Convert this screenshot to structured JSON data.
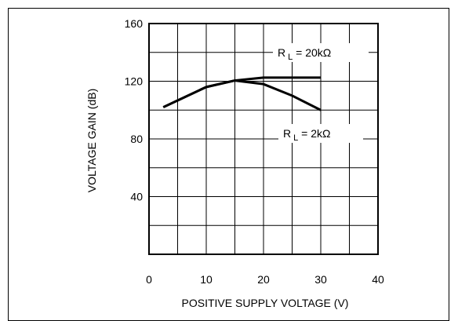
{
  "chart_data": {
    "type": "line",
    "xlabel": "POSITIVE SUPPLY VOLTAGE (V)",
    "ylabel": "VOLTAGE GAIN (dB)",
    "xlim": [
      0,
      40
    ],
    "ylim": [
      0,
      160
    ],
    "x_ticks": [
      0,
      10,
      20,
      30,
      40
    ],
    "y_ticks": [
      40,
      80,
      120,
      160
    ],
    "x_tick_labels": [
      "0",
      "10",
      "20",
      "30",
      "40"
    ],
    "y_tick_labels": [
      "40",
      "80",
      "120",
      "160"
    ],
    "grid": true,
    "series": [
      {
        "name": "RL = 20kΩ",
        "x": [
          2.5,
          10,
          15,
          20,
          30
        ],
        "y": [
          102,
          116,
          120.5,
          122.5,
          122.5
        ]
      },
      {
        "name": "RL = 2kΩ",
        "x": [
          2.5,
          10,
          15,
          20,
          25,
          30
        ],
        "y": [
          102,
          116,
          120.5,
          118,
          110,
          100
        ]
      }
    ],
    "annotations": [
      {
        "id": "rl20",
        "prefix": "R",
        "sub": "L",
        "suffix": " = 20kΩ"
      },
      {
        "id": "rl2",
        "prefix": "R",
        "sub": "L",
        "suffix": " = 2kΩ"
      }
    ]
  }
}
